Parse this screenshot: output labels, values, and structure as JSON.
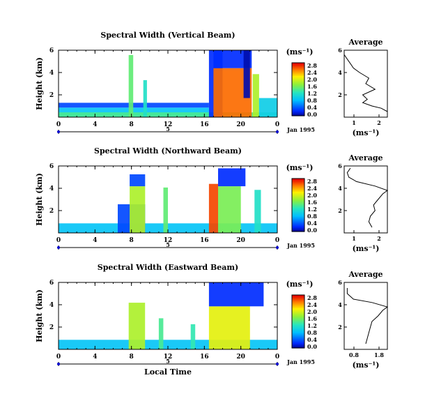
{
  "figure": {
    "xlabel": "Local Time",
    "date_label": "Jan 1995",
    "day_label": "5",
    "unit_label": "(ms⁻¹)",
    "profile_title": "Average",
    "profile_xlabel": "(ms⁻¹)"
  },
  "chart_data": [
    {
      "type": "heatmap",
      "title": "Spectral Width (Vertical Beam)",
      "ylabel": "Height (km)",
      "xlabel": "",
      "x_ticks": [
        "0",
        "4",
        "8",
        "12",
        "16",
        "20",
        "0"
      ],
      "y_ticks": [
        "6",
        "4",
        "2"
      ],
      "xlim": [
        0,
        24
      ],
      "ylim": [
        0.4,
        6.0
      ],
      "colorbar": {
        "ticks": [
          "2.8",
          "2.4",
          "2.0",
          "1.6",
          "1.2",
          "0.8",
          "0.4",
          "0.0"
        ],
        "range": [
          0,
          2.8
        ]
      },
      "regions": [
        {
          "t0": 0.0,
          "t1": 16.5,
          "h0": 0.4,
          "h1": 1.2,
          "v": 0.9
        },
        {
          "t0": 0.0,
          "t1": 16.5,
          "h0": 1.2,
          "h1": 1.6,
          "v": 0.4
        },
        {
          "t0": 0.0,
          "t1": 24.0,
          "h0": 0.4,
          "h1": 0.8,
          "v": 1.4
        },
        {
          "t0": 7.7,
          "t1": 8.2,
          "h0": 0.4,
          "h1": 5.6,
          "v": 1.5
        },
        {
          "t0": 9.3,
          "t1": 9.7,
          "h0": 0.4,
          "h1": 3.5,
          "v": 1.2
        },
        {
          "t0": 16.5,
          "t1": 18.0,
          "h0": 0.4,
          "h1": 6.0,
          "v": 0.3
        },
        {
          "t0": 17.0,
          "t1": 21.2,
          "h0": 0.4,
          "h1": 4.5,
          "v": 2.5
        },
        {
          "t0": 17.0,
          "t1": 21.2,
          "h0": 4.5,
          "h1": 6.0,
          "v": 0.3
        },
        {
          "t0": 20.3,
          "t1": 21.0,
          "h0": 2.0,
          "h1": 6.0,
          "v": 0.1
        },
        {
          "t0": 21.3,
          "t1": 22.0,
          "h0": 0.4,
          "h1": 4.0,
          "v": 1.8
        },
        {
          "t0": 22.0,
          "t1": 24.0,
          "h0": 0.4,
          "h1": 2.0,
          "v": 1.0
        }
      ],
      "profile": {
        "xlim": [
          0.6,
          2.0
        ],
        "x_ticks": [
          "1",
          "2"
        ],
        "y_ticks": [
          "6",
          "4",
          "2"
        ],
        "ylim": [
          0,
          6
        ],
        "h": [
          0.5,
          0.8,
          1.0,
          1.3,
          1.6,
          2.0,
          2.5,
          3.0,
          3.5,
          4.0,
          4.4,
          4.8,
          5.2,
          5.6
        ],
        "v": [
          2.0,
          1.8,
          1.5,
          1.2,
          1.35,
          1.2,
          1.6,
          1.3,
          1.4,
          1.1,
          0.9,
          0.8,
          0.7,
          0.6
        ]
      }
    },
    {
      "type": "heatmap",
      "title": "Spectral Width (Northward Beam)",
      "ylabel": "Height (km)",
      "xlabel": "",
      "x_ticks": [
        "0",
        "4",
        "8",
        "12",
        "16",
        "20",
        "0"
      ],
      "y_ticks": [
        "6",
        "4",
        "2"
      ],
      "xlim": [
        0,
        24
      ],
      "ylim": [
        0.4,
        6.0
      ],
      "colorbar": {
        "ticks": [
          "2.8",
          "2.4",
          "2.0",
          "1.6",
          "1.2",
          "0.8",
          "0.4",
          "0.0"
        ],
        "range": [
          0,
          2.8
        ]
      },
      "regions": [
        {
          "t0": 0.0,
          "t1": 24.0,
          "h0": 0.4,
          "h1": 1.2,
          "v": 0.9
        },
        {
          "t0": 6.5,
          "t1": 9.5,
          "h0": 0.4,
          "h1": 2.8,
          "v": 0.4
        },
        {
          "t0": 7.8,
          "t1": 9.5,
          "h0": 0.4,
          "h1": 4.3,
          "v": 1.8
        },
        {
          "t0": 7.8,
          "t1": 9.5,
          "h0": 4.3,
          "h1": 5.3,
          "v": 0.4
        },
        {
          "t0": 11.5,
          "t1": 12.0,
          "h0": 0.4,
          "h1": 4.2,
          "v": 1.5
        },
        {
          "t0": 16.5,
          "t1": 17.5,
          "h0": 0.4,
          "h1": 4.5,
          "v": 2.6
        },
        {
          "t0": 17.5,
          "t1": 20.0,
          "h0": 0.4,
          "h1": 4.3,
          "v": 1.6
        },
        {
          "t0": 17.5,
          "t1": 20.5,
          "h0": 4.3,
          "h1": 5.8,
          "v": 0.3
        },
        {
          "t0": 21.5,
          "t1": 22.2,
          "h0": 0.4,
          "h1": 4.0,
          "v": 1.2
        }
      ],
      "profile": {
        "xlim": [
          0.6,
          2.0
        ],
        "x_ticks": [
          "1",
          "2"
        ],
        "y_ticks": [
          "6",
          "4",
          "2"
        ],
        "ylim": [
          0,
          6
        ],
        "h": [
          0.5,
          1.0,
          1.5,
          2.0,
          2.5,
          3.0,
          3.5,
          3.8,
          4.2,
          4.6,
          5.0,
          5.4,
          5.8
        ],
        "v": [
          1.5,
          1.4,
          1.45,
          1.6,
          1.55,
          1.7,
          1.85,
          2.0,
          1.6,
          1.0,
          0.75,
          0.7,
          0.8
        ]
      }
    },
    {
      "type": "heatmap",
      "title": "Spectral Width (Eastward Beam)",
      "ylabel": "Height (km)",
      "xlabel": "Local Time",
      "x_ticks": [
        "0",
        "4",
        "8",
        "12",
        "16",
        "20",
        "0"
      ],
      "y_ticks": [
        "6",
        "4",
        "2"
      ],
      "xlim": [
        0,
        24
      ],
      "ylim": [
        0.4,
        6.0
      ],
      "colorbar": {
        "ticks": [
          "2.8",
          "2.4",
          "2.0",
          "1.6",
          "1.2",
          "0.8",
          "0.4",
          "0.0"
        ],
        "range": [
          0,
          2.8
        ]
      },
      "regions": [
        {
          "t0": 0.0,
          "t1": 24.0,
          "h0": 0.4,
          "h1": 1.2,
          "v": 0.9
        },
        {
          "t0": 7.7,
          "t1": 9.5,
          "h0": 0.4,
          "h1": 4.3,
          "v": 1.8
        },
        {
          "t0": 11.0,
          "t1": 11.5,
          "h0": 0.4,
          "h1": 3.0,
          "v": 1.4
        },
        {
          "t0": 14.5,
          "t1": 15.0,
          "h0": 0.4,
          "h1": 2.5,
          "v": 1.3
        },
        {
          "t0": 16.5,
          "t1": 21.0,
          "h0": 0.4,
          "h1": 4.0,
          "v": 2.0
        },
        {
          "t0": 16.5,
          "t1": 22.5,
          "h0": 4.0,
          "h1": 6.0,
          "v": 0.3
        }
      ],
      "profile": {
        "xlim": [
          0.6,
          2.0
        ],
        "x_ticks": [
          "0.8",
          "1.8"
        ],
        "y_ticks": [
          "6",
          "4",
          "2"
        ],
        "ylim": [
          0,
          6
        ],
        "h": [
          0.5,
          1.0,
          1.5,
          2.0,
          2.5,
          3.0,
          3.5,
          3.8,
          4.2,
          4.5,
          5.0,
          5.5
        ],
        "v": [
          1.3,
          1.35,
          1.4,
          1.45,
          1.5,
          1.7,
          1.85,
          2.0,
          1.5,
          0.9,
          0.7,
          0.7
        ]
      }
    }
  ]
}
